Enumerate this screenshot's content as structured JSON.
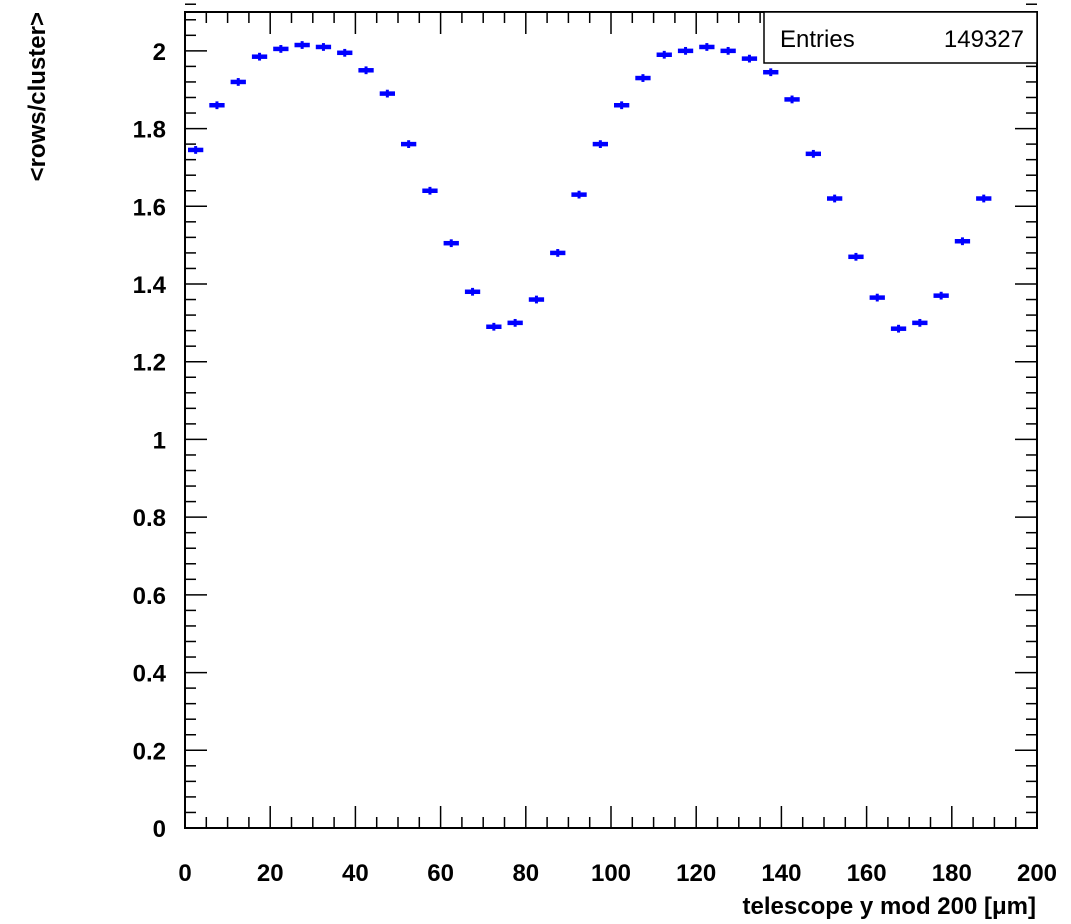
{
  "chart_data": {
    "type": "scatter",
    "xlabel": "telescope y mod 200 [μm]",
    "ylabel": "<rows/cluster>",
    "xlim": [
      0,
      200
    ],
    "ylim": [
      0,
      2.1
    ],
    "x_ticks": [
      0,
      20,
      40,
      60,
      80,
      100,
      120,
      140,
      160,
      180,
      200
    ],
    "y_ticks": [
      0,
      0.2,
      0.4,
      0.6,
      0.8,
      1,
      1.2,
      1.4,
      1.6,
      1.8,
      2
    ],
    "bin_width": 5,
    "marker_color": "#0000ff",
    "stats": {
      "label": "Entries",
      "value": "149327"
    },
    "series": [
      {
        "x": [
          2.5,
          7.5,
          12.5,
          17.5,
          22.5,
          27.5,
          32.5,
          37.5,
          42.5,
          47.5,
          52.5,
          57.5,
          62.5,
          67.5,
          72.5,
          77.5,
          82.5,
          87.5,
          92.5,
          97.5,
          102.5,
          107.5,
          112.5,
          117.5,
          122.5,
          127.5,
          132.5,
          137.5,
          142.5,
          147.5,
          152.5,
          157.5,
          162.5,
          167.5,
          172.5,
          177.5,
          182.5,
          187.5
        ],
        "y": [
          1.745,
          1.86,
          1.92,
          1.985,
          2.005,
          2.015,
          2.01,
          1.995,
          1.95,
          1.89,
          1.76,
          1.64,
          1.505,
          1.38,
          1.29,
          1.3,
          1.36,
          1.48,
          1.63,
          1.76,
          1.86,
          1.93,
          1.99,
          2.0,
          2.01,
          2.0,
          1.98,
          1.945,
          1.875,
          1.735,
          1.62,
          1.47,
          1.365,
          1.285,
          1.3,
          1.37,
          1.51,
          1.62
        ],
        "y_err": [
          0.01,
          0.01,
          0.01,
          0.01,
          0.01,
          0.01,
          0.01,
          0.01,
          0.01,
          0.01,
          0.01,
          0.01,
          0.01,
          0.01,
          0.01,
          0.01,
          0.01,
          0.01,
          0.01,
          0.01,
          0.01,
          0.01,
          0.01,
          0.01,
          0.01,
          0.01,
          0.01,
          0.01,
          0.01,
          0.01,
          0.01,
          0.01,
          0.01,
          0.01,
          0.01,
          0.01,
          0.01,
          0.01
        ]
      }
    ]
  }
}
